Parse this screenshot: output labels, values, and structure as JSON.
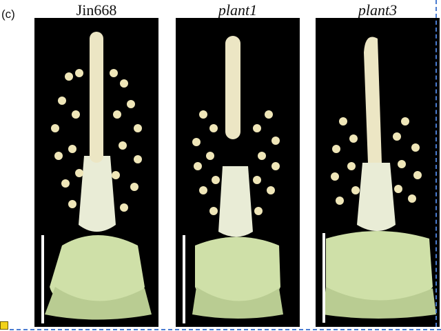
{
  "panel_label": "(c)",
  "columns": [
    {
      "title": "Jin668",
      "italic": false
    },
    {
      "title": "plant1",
      "italic": true
    },
    {
      "title": "plant3",
      "italic": true
    }
  ],
  "colors": {
    "background": "#000000",
    "tissue": "#cfe0a8",
    "stamen": "#efe6b8",
    "scale_bar": "#ffffff",
    "border_dashes": "#4a7bd0"
  },
  "scale_bar": true
}
